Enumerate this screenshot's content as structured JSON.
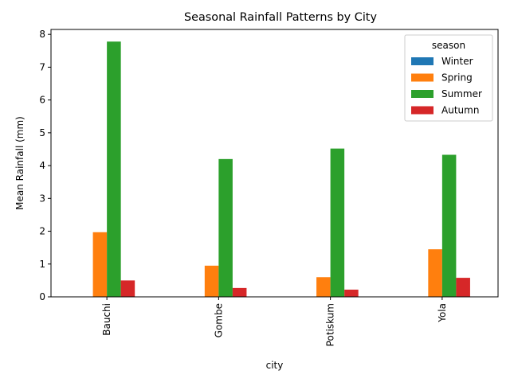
{
  "chart_data": {
    "type": "bar",
    "title": "Seasonal Rainfall Patterns by City",
    "xlabel": "city",
    "ylabel": "Mean Rainfall (mm)",
    "categories": [
      "Bauchi",
      "Gombe",
      "Potiskum",
      "Yola"
    ],
    "ylim": [
      0,
      8.15
    ],
    "yticks": [
      0,
      1,
      2,
      3,
      4,
      5,
      6,
      7,
      8
    ],
    "grid": false,
    "legend": {
      "title": "season",
      "placement": "top-right"
    },
    "series": [
      {
        "name": "Winter",
        "color": "#1f77b4",
        "values": [
          0,
          0,
          0,
          0
        ]
      },
      {
        "name": "Spring",
        "color": "#ff7f0e",
        "values": [
          1.97,
          0.95,
          0.6,
          1.45
        ]
      },
      {
        "name": "Summer",
        "color": "#2ca02c",
        "values": [
          7.78,
          4.2,
          4.52,
          4.33
        ]
      },
      {
        "name": "Autumn",
        "color": "#d62728",
        "values": [
          0.5,
          0.27,
          0.22,
          0.58
        ]
      }
    ]
  }
}
